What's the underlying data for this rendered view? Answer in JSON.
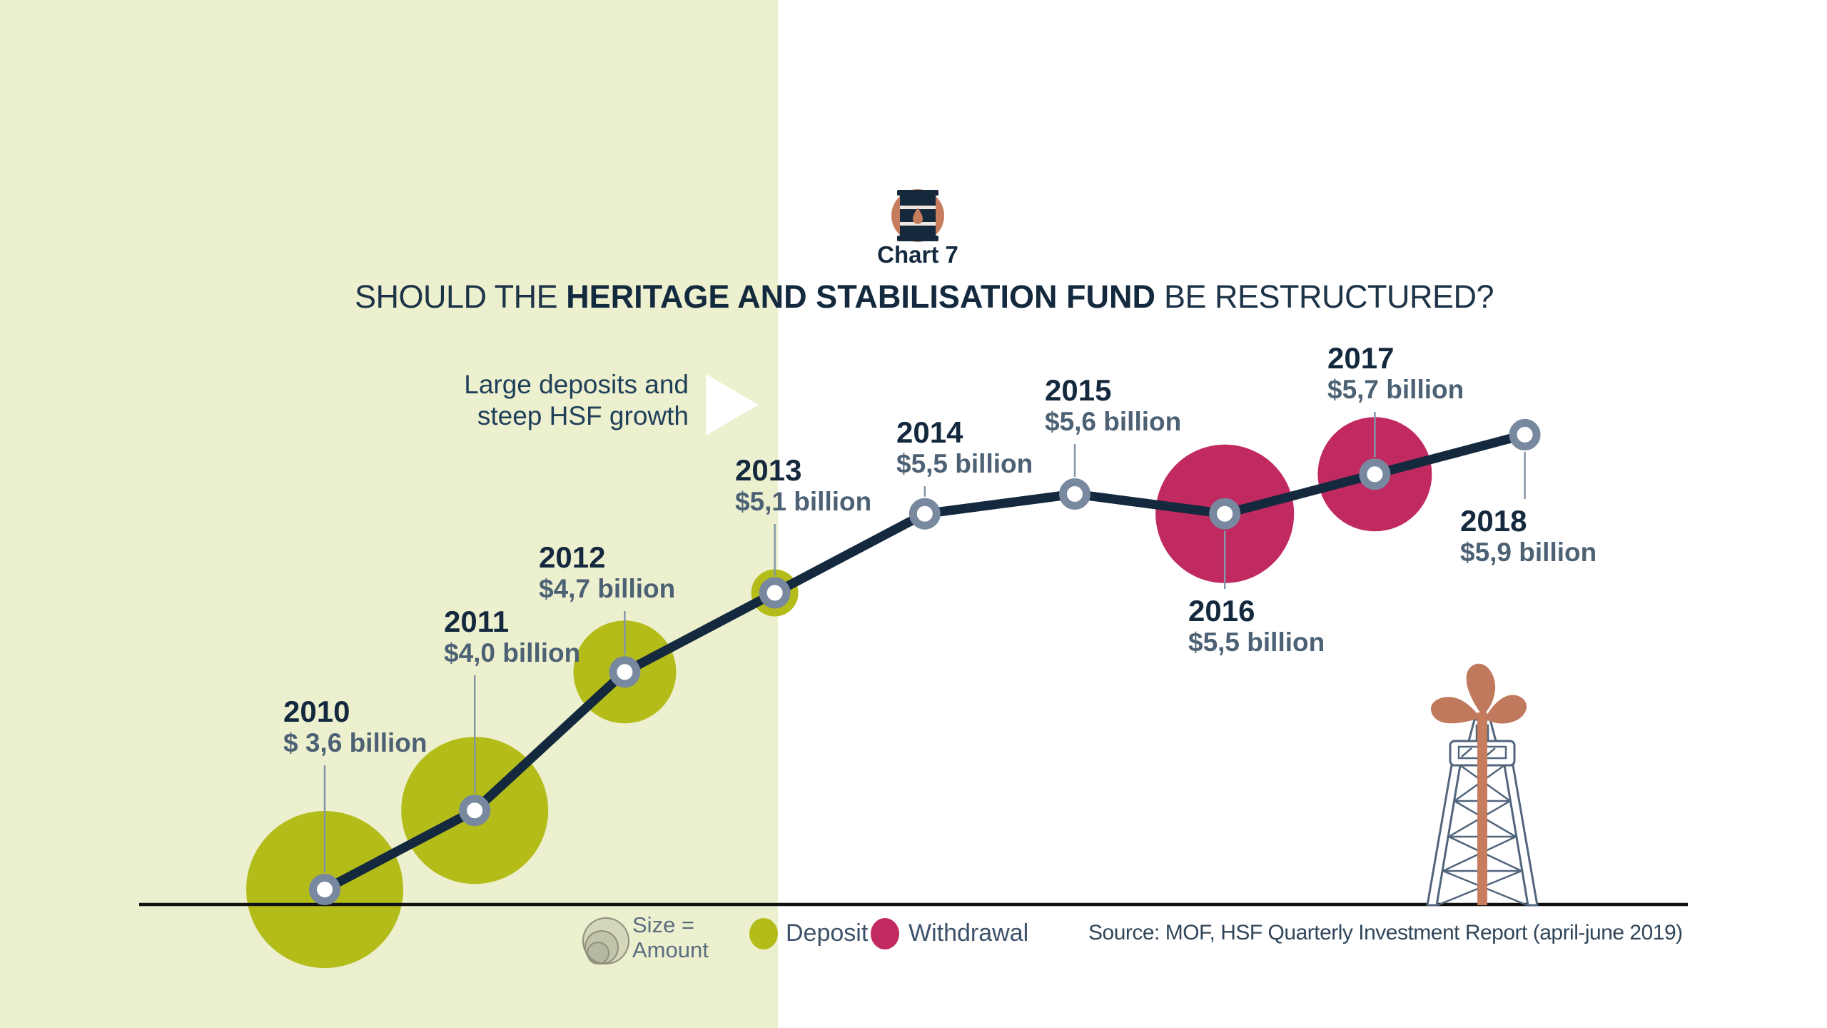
{
  "chart_label": "Chart 7",
  "title": {
    "part1": "SHOULD THE ",
    "part2": "HERITAGE AND STABILISATION FUND",
    "part3": " BE RESTRUCTURED?"
  },
  "annotation": {
    "line1": "Large deposits and",
    "line2": "steep HSF growth"
  },
  "legend": {
    "size_line1": "Size =",
    "size_line2": "Amount",
    "deposit": "Deposit",
    "withdrawal": "Withdrawal"
  },
  "source": "Source: MOF, HSF Quarterly Investment Report (april-june 2019)",
  "colors": {
    "panel_left": "#edf0cf",
    "deposit": "#b4bc1a",
    "withdrawal": "#c12a61",
    "trend_line": "#14293d",
    "marker_ring": "#77889f",
    "leader_line": "#8396a8",
    "axis_line": "#111111",
    "terracotta": "#c57d5e",
    "year_text": "#14293e",
    "value_text": "#4d6174"
  },
  "chart_data": {
    "type": "line+bubble",
    "title": "SHOULD THE HERITAGE AND STABILISATION FUND BE RESTRUCTURED?",
    "x_years": [
      2010,
      2011,
      2012,
      2013,
      2014,
      2015,
      2016,
      2017,
      2018
    ],
    "values_usd_billion": [
      3.6,
      4.0,
      4.7,
      5.1,
      5.5,
      5.6,
      5.5,
      5.7,
      5.9
    ],
    "value_labels": [
      "$ 3,6 billion",
      "$4,0 billion",
      "$4,7 billion",
      "$5,1 billion",
      "$5,5 billion",
      "$5,6 billion",
      "$5,5 billion",
      "$5,7 billion",
      "$5,9 billion"
    ],
    "flow_type": [
      "deposit",
      "deposit",
      "deposit",
      "deposit",
      "none",
      "none",
      "withdrawal",
      "withdrawal",
      "none"
    ],
    "bubble_radius_px": [
      110,
      103,
      72,
      33,
      0,
      0,
      97,
      80,
      0
    ],
    "annotation": "Large deposits and steep HSF growth",
    "legend_entries": [
      "Deposit",
      "Withdrawal"
    ],
    "bubble_size_note": "Size = Amount",
    "grid": false
  }
}
